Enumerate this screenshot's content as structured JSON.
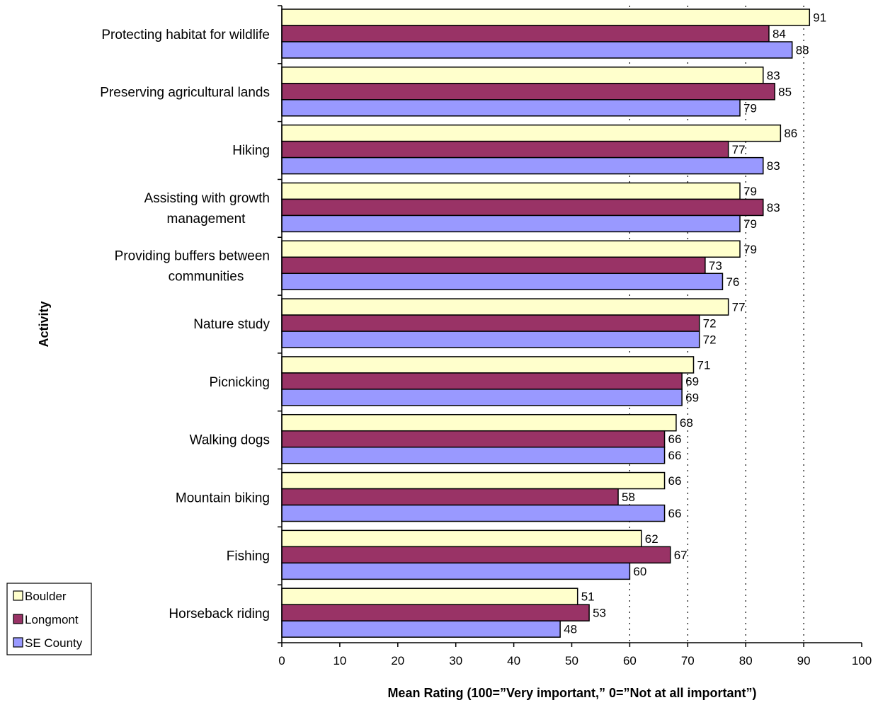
{
  "chart_data": {
    "type": "bar",
    "orientation": "horizontal",
    "title": "",
    "xlabel": "Mean Rating (100=”Very important,” 0=”Not at all important”)",
    "ylabel": "Activity",
    "xlim": [
      0,
      100
    ],
    "xticks": [
      0,
      10,
      20,
      30,
      40,
      50,
      60,
      70,
      80,
      90,
      100
    ],
    "grid": "vertical dotted lines at 60, 70, 80, 90",
    "legend_position": "bottom-left",
    "categories": [
      [
        "Protecting habitat for wildlife"
      ],
      [
        "Preserving agricultural lands"
      ],
      [
        "Hiking"
      ],
      [
        "Assisting with growth",
        "management"
      ],
      [
        "Providing buffers between",
        "communities"
      ],
      [
        "Nature study"
      ],
      [
        "Picnicking"
      ],
      [
        "Walking dogs"
      ],
      [
        "Mountain biking"
      ],
      [
        "Fishing"
      ],
      [
        "Horseback riding"
      ]
    ],
    "series": [
      {
        "name": "Boulder",
        "color": "#ffffcc",
        "values": [
          91,
          83,
          86,
          79,
          79,
          77,
          71,
          68,
          66,
          62,
          51
        ]
      },
      {
        "name": "Longmont",
        "color": "#993366",
        "values": [
          84,
          85,
          77,
          83,
          73,
          72,
          69,
          66,
          58,
          67,
          53
        ]
      },
      {
        "name": "SE County",
        "color": "#9999ff",
        "values": [
          88,
          79,
          83,
          79,
          76,
          72,
          69,
          66,
          66,
          60,
          48
        ]
      }
    ]
  }
}
